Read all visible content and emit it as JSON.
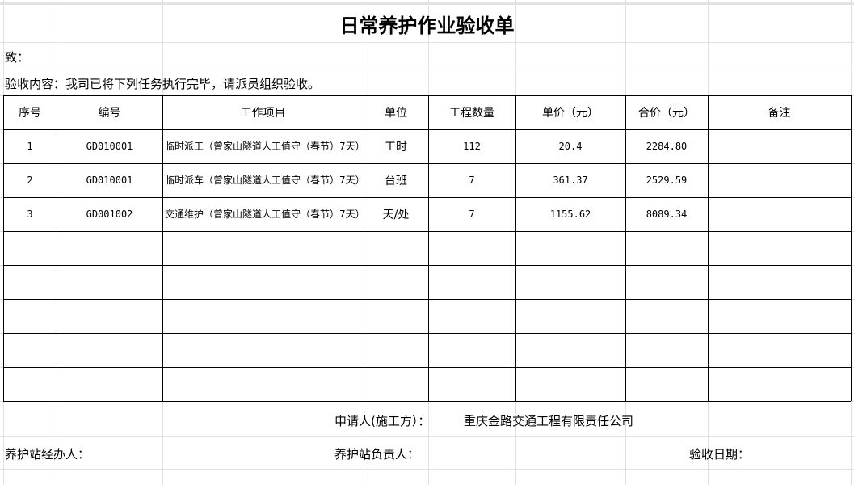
{
  "title": "日常养护作业验收单",
  "to": "致：",
  "content": "验收内容：我司已将下列任务执行完毕，请派员组织验收。",
  "table": {
    "headers": [
      "序号",
      "编号",
      "工作项目",
      "单位",
      "工程数量",
      "单价（元）",
      "合价（元）",
      "备注"
    ],
    "rows": [
      [
        "1",
        "GD010001",
        "临时派工（曾家山隧道人工值守（春节）7天）",
        "工时",
        "112",
        "20.4",
        "2284.80"
      ],
      [
        "2",
        "GD010001",
        "临时派车（曾家山隧道人工值守（春节）7天）",
        "台班",
        "7",
        "361.37",
        "2529.59"
      ],
      [
        "3",
        "GD001002",
        "交通维护（曾家山隧道人工值守（春节）7天）",
        "天/处",
        "7",
        "1155.62",
        "8089.34"
      ]
    ]
  },
  "footer": {
    "applicant_label": "申请人(施工方）：",
    "applicant": "重庆金路交通工程有限责任公司",
    "handler": "养护站经办人：",
    "manager": "养护站负责人：",
    "date": "验收日期："
  }
}
